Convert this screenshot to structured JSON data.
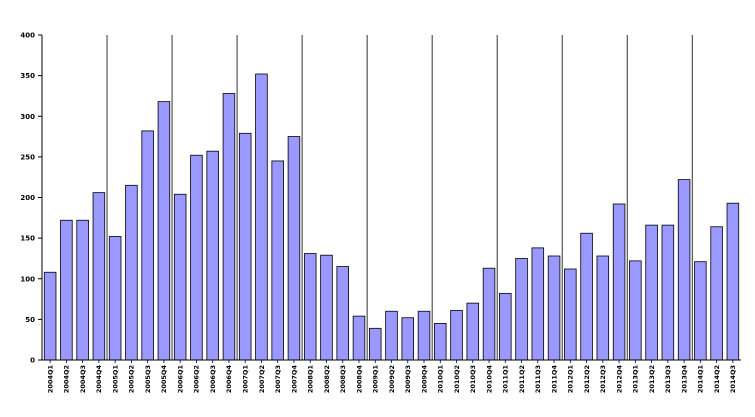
{
  "chart_data": {
    "type": "bar",
    "title": "",
    "xlabel": "",
    "ylabel": "",
    "ylim": [
      0,
      400
    ],
    "yticks": [
      0,
      50,
      100,
      150,
      200,
      250,
      300,
      350,
      400
    ],
    "grid": "vertical lines between years",
    "bar_color": "#9999ff",
    "bar_stroke": "#000000",
    "categories": [
      "2004Q1",
      "2004Q2",
      "2004Q3",
      "2004Q4",
      "2005Q1",
      "2005Q2",
      "2005Q3",
      "2005Q4",
      "2006Q1",
      "2006Q2",
      "2006Q3",
      "2006Q4",
      "2007Q1",
      "2007Q2",
      "2007Q3",
      "2007Q4",
      "2008Q1",
      "2008Q2",
      "2008Q3",
      "2008Q4",
      "2009Q1",
      "2009Q2",
      "2009Q3",
      "2009Q4",
      "2010Q1",
      "2010Q2",
      "2010Q3",
      "2010Q4",
      "2011Q1",
      "2011Q2",
      "2011Q3",
      "2011Q4",
      "2012Q1",
      "2012Q2",
      "2012Q3",
      "2012Q4",
      "2013Q1",
      "2013Q2",
      "2013Q3",
      "2013Q4",
      "2014Q1",
      "2014Q2",
      "2014Q3"
    ],
    "values": [
      108,
      172,
      172,
      206,
      152,
      215,
      282,
      318,
      204,
      252,
      257,
      328,
      279,
      352,
      245,
      275,
      131,
      129,
      115,
      54,
      39,
      60,
      52,
      60,
      45,
      61,
      70,
      113,
      82,
      125,
      138,
      128,
      112,
      156,
      128,
      192,
      122,
      166,
      166,
      222,
      121,
      164,
      193
    ]
  }
}
